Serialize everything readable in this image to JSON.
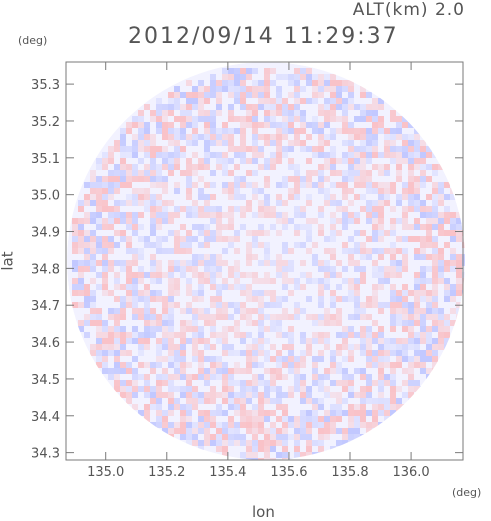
{
  "header": {
    "altitude_label": "ALT(km)  2.0",
    "timestamp": "2012/09/14 11:29:37"
  },
  "chart_data": {
    "type": "heatmap",
    "title": "2012/09/14 11:29:37",
    "xlabel": "lon",
    "ylabel": "lat",
    "xunit": "(deg)",
    "yunit": "(deg)",
    "xlim": [
      134.87,
      136.17
    ],
    "ylim": [
      34.28,
      35.36
    ],
    "x_ticks": [
      "135.0",
      "135.2",
      "135.4",
      "135.6",
      "135.8",
      "136.0"
    ],
    "y_ticks": [
      "34.3",
      "34.4",
      "34.5",
      "34.6",
      "34.7",
      "34.8",
      "34.9",
      "35.0",
      "35.1",
      "35.2",
      "35.3"
    ],
    "x_tick_values": [
      135.0,
      135.2,
      135.4,
      135.6,
      135.8,
      136.0
    ],
    "y_tick_values": [
      34.3,
      34.4,
      34.5,
      34.6,
      34.7,
      34.8,
      34.9,
      35.0,
      35.1,
      35.2,
      35.3
    ],
    "domain_center": [
      135.525,
      34.82
    ],
    "colors": {
      "positive": "#ff9a9a",
      "negative": "#9aa6ff",
      "neutral": "#f2f2ff"
    },
    "grid": false
  }
}
